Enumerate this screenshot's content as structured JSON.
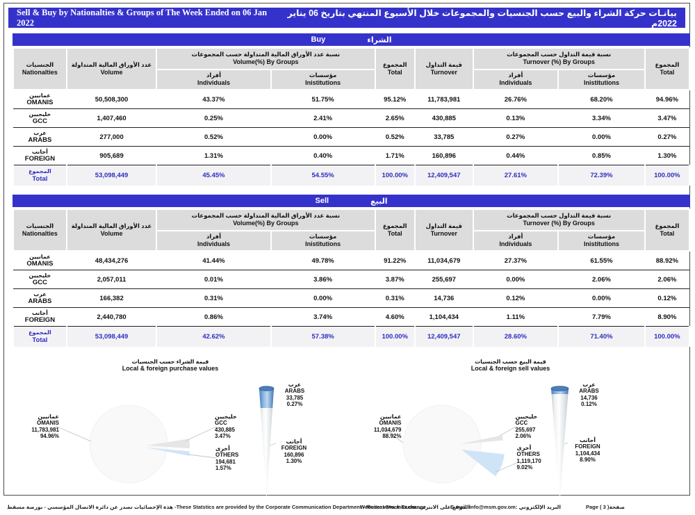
{
  "banner": {
    "title_en": "Sell & Buy by Nationalties & Groups of The Week Ended on 06 Jan 2022",
    "title_ar": "بيانـات حركة الشراء والبيع حسب الجنسيات والمجموعات خلال الأسبوع المنتهي  بتاريخ 06 يناير  2022م"
  },
  "colors": {
    "accent_blue": "#3532cb",
    "total_text_blue": "#2e2ec0",
    "header_gray": "#dcdcdc",
    "pie_blue": "#cfe4f6",
    "pie_gray": "#e4e7e6",
    "cone_blue": "#5b8fd0"
  },
  "tables": {
    "headers": {
      "nationalties_ar": "الجنسيات",
      "nationalties_en": "Nationalties",
      "volume_ar": "عدد الأوراق المالية المتداولة",
      "volume_en": "Volume",
      "volume_groups_ar": "نسبة عدد الأوراق المالية المتداولة حسب المجموعات",
      "volume_groups_en": "Volume(%) By Groups",
      "individuals_ar": "أفراد",
      "individuals_en": "Individuals",
      "institutions_ar": "مؤسسات",
      "institutions_en": "Inistitutions",
      "total_ar": "المجموع",
      "total_en": "Total",
      "turnover_ar": "قيمة التداول",
      "turnover_en": "Turnover",
      "turnover_groups_ar": "نسبة قيمة التداول حسب المجموعات",
      "turnover_groups_en": "Turnover (%) By Groups"
    },
    "buy": {
      "bar_en": "Buy",
      "bar_ar": "الشراء",
      "rows": [
        {
          "ar": "عمانيين",
          "en": "OMANIS",
          "cells": [
            "50,508,300",
            "43.37%",
            "51.75%",
            "95.12%",
            "11,783,981",
            "26.76%",
            "68.20%",
            "94.96%"
          ]
        },
        {
          "ar": "خليجيين",
          "en": "GCC",
          "cells": [
            "1,407,460",
            "0.25%",
            "2.41%",
            "2.65%",
            "430,885",
            "0.13%",
            "3.34%",
            "3.47%"
          ]
        },
        {
          "ar": "عرب",
          "en": "ARABS",
          "cells": [
            "277,000",
            "0.52%",
            "0.00%",
            "0.52%",
            "33,785",
            "0.27%",
            "0.00%",
            "0.27%"
          ]
        },
        {
          "ar": "أجانب",
          "en": "FOREIGN",
          "cells": [
            "905,689",
            "1.31%",
            "0.40%",
            "1.71%",
            "160,896",
            "0.44%",
            "0.85%",
            "1.30%"
          ]
        }
      ],
      "total": {
        "ar": "المجموع",
        "en": "Total",
        "cells": [
          "53,098,449",
          "45.45%",
          "54.55%",
          "100.00%",
          "12,409,547",
          "27.61%",
          "72.39%",
          "100.00%"
        ]
      }
    },
    "sell": {
      "bar_en": "Sell",
      "bar_ar": "البيع",
      "rows": [
        {
          "ar": "عمانيين",
          "en": "OMANIS",
          "cells": [
            "48,434,276",
            "41.44%",
            "49.78%",
            "91.22%",
            "11,034,679",
            "27.37%",
            "61.55%",
            "88.92%"
          ]
        },
        {
          "ar": "خليجيين",
          "en": "GCC",
          "cells": [
            "2,057,011",
            "0.01%",
            "3.86%",
            "3.87%",
            "255,697",
            "0.00%",
            "2.06%",
            "2.06%"
          ]
        },
        {
          "ar": "عرب",
          "en": "ARABS",
          "cells": [
            "166,382",
            "0.31%",
            "0.00%",
            "0.31%",
            "14,736",
            "0.12%",
            "0.00%",
            "0.12%"
          ]
        },
        {
          "ar": "أجانب",
          "en": "FOREIGN",
          "cells": [
            "2,440,780",
            "0.86%",
            "3.74%",
            "4.60%",
            "1,104,434",
            "1.11%",
            "7.79%",
            "8.90%"
          ]
        }
      ],
      "total": {
        "ar": "المجموع",
        "en": "Total",
        "cells": [
          "53,098,449",
          "42.62%",
          "57.38%",
          "100.00%",
          "12,409,547",
          "28.60%",
          "71.40%",
          "100.00%"
        ]
      }
    }
  },
  "chart_data": [
    {
      "type": "pie",
      "title_ar": "قيمة الشراء حسب الجنسيات",
      "title_en": "Local & foreign purchase values",
      "legend_position": "callout-labels",
      "slices": [
        {
          "ar": "عمانيين",
          "en": "OMANIS",
          "value": "11,783,981",
          "pct": "94.96%",
          "pct_num": 94.96
        },
        {
          "ar": "خليجيين",
          "en": "GCC",
          "value": "430,885",
          "pct": "3.47%",
          "pct_num": 3.47
        },
        {
          "ar": "أخرى",
          "en": "OTHERS",
          "value": "194,681",
          "pct": "1.57%",
          "pct_num": 1.57
        }
      ],
      "cone_breakdown": [
        {
          "ar": "عرب",
          "en": "ARABS",
          "value": "33,785",
          "pct": "0.27%",
          "pct_num": 0.27
        },
        {
          "ar": "أجانب",
          "en": "FOREIGN",
          "value": "160,896",
          "pct": "1.30%",
          "pct_num": 1.3
        }
      ]
    },
    {
      "type": "pie",
      "title_ar": "قيمة البيع حسب الجنسيات",
      "title_en": "Local & foreign sell values",
      "legend_position": "callout-labels",
      "slices": [
        {
          "ar": "عمانيين",
          "en": "OMANIS",
          "value": "11,034,679",
          "pct": "88.92%",
          "pct_num": 88.92
        },
        {
          "ar": "خليجيين",
          "en": "GCC",
          "value": "255,697",
          "pct": "2.06%",
          "pct_num": 2.06
        },
        {
          "ar": "أخرى",
          "en": "OTHERS",
          "value": "1,119,170",
          "pct": "9.02%",
          "pct_num": 9.02
        }
      ],
      "cone_breakdown": [
        {
          "ar": "عرب",
          "en": "ARABS",
          "value": "14,736",
          "pct": "0.12%",
          "pct_num": 0.12
        },
        {
          "ar": "أجانب",
          "en": "FOREIGN",
          "value": "1,104,434",
          "pct": "8.90%",
          "pct_num": 8.9
        }
      ]
    }
  ],
  "footer": {
    "note_ar": "هذة الإحصائيات تصدر عن دائرة الاتصال المؤسسي - بورصة مسقط",
    "note_en": " -These Statstics are provided by the Corporate Communication Department - Muscat Stock Exchange",
    "website_en": "Website: www.msx.om:",
    "website_ar": "الموقع على الانترنت",
    "email_en": "E-mail: info@msm.gov.om:",
    "email_ar": "البريد الإلكتروني",
    "page_en": "Page ( 3 )",
    "page_ar": "صفحة"
  }
}
